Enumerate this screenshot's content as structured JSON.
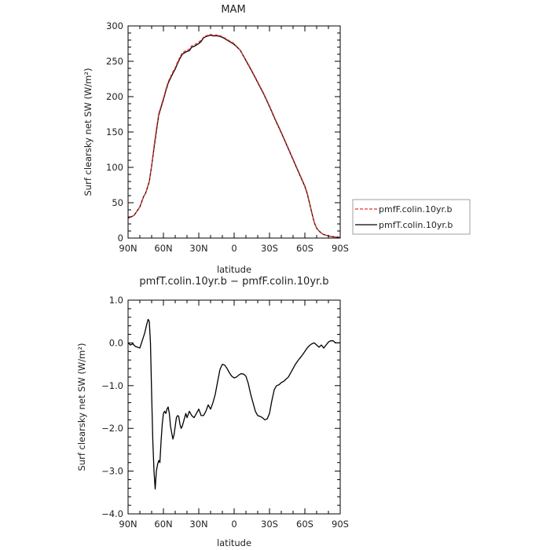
{
  "chart_data": [
    {
      "type": "line",
      "title": "MAM",
      "xlabel": "latitude",
      "ylabel": "Surf clearsky net SW (W/m²)",
      "x_tick_labels": [
        "90N",
        "60N",
        "30N",
        "0",
        "30S",
        "60S",
        "90S"
      ],
      "y_tick_labels": [
        "0",
        "50",
        "100",
        "150",
        "200",
        "250",
        "300"
      ],
      "xlim": [
        90,
        -90
      ],
      "ylim": [
        0,
        300
      ],
      "legend_position": "right",
      "series": [
        {
          "name": "pmfF.colin.10yr.b",
          "color": "#e8302a",
          "dash": true,
          "x": [
            90,
            85,
            80,
            77,
            75,
            72,
            70,
            68,
            66,
            64,
            62,
            60,
            58,
            56,
            54,
            52,
            50,
            48,
            46,
            44,
            42,
            40,
            38,
            36,
            34,
            32,
            30,
            28,
            26,
            24,
            22,
            20,
            18,
            16,
            14,
            12,
            10,
            8,
            6,
            4,
            2,
            0,
            -5,
            -10,
            -15,
            -20,
            -25,
            -30,
            -35,
            -40,
            -45,
            -50,
            -55,
            -60,
            -62,
            -64,
            -66,
            -68,
            -70,
            -72,
            -74,
            -76,
            -78,
            -80,
            -83,
            -86,
            -90
          ],
          "y": [
            28,
            32,
            44,
            58,
            64,
            80,
            102,
            130,
            154,
            176,
            187,
            198,
            210,
            221,
            228,
            235,
            241,
            249,
            256,
            262,
            264,
            266,
            267,
            272,
            273,
            275,
            277,
            280,
            284,
            286,
            287,
            288,
            287,
            287,
            287,
            286,
            285,
            283,
            281,
            279,
            277,
            275,
            266,
            252,
            237,
            221,
            205,
            187,
            168,
            150,
            131,
            112,
            93,
            74,
            64,
            50,
            36,
            22,
            14,
            10,
            7,
            5,
            4,
            3,
            2,
            1.5,
            1
          ]
        },
        {
          "name": "pmfT.colin.10yr.b",
          "color": "#000000",
          "dash": false,
          "x": [
            90,
            85,
            80,
            77,
            75,
            72,
            70,
            68,
            66,
            64,
            62,
            60,
            58,
            56,
            54,
            52,
            50,
            48,
            46,
            44,
            42,
            40,
            38,
            36,
            34,
            32,
            30,
            28,
            26,
            24,
            22,
            20,
            18,
            16,
            14,
            12,
            10,
            8,
            6,
            4,
            2,
            0,
            -5,
            -10,
            -15,
            -20,
            -25,
            -30,
            -35,
            -40,
            -45,
            -50,
            -55,
            -60,
            -62,
            -64,
            -66,
            -68,
            -70,
            -72,
            -74,
            -76,
            -78,
            -80,
            -83,
            -86,
            -90
          ],
          "y": [
            28,
            32,
            44,
            58,
            64,
            80,
            102,
            127,
            151,
            174,
            185,
            196,
            208,
            219,
            226,
            233,
            239,
            247,
            254,
            260,
            262,
            264,
            265,
            270,
            271,
            273,
            275,
            278,
            283,
            285,
            286,
            287,
            286,
            286,
            286,
            285,
            284,
            282,
            280,
            278,
            276,
            274,
            266,
            251,
            236,
            220,
            204,
            186,
            167,
            149,
            130,
            111,
            92,
            73,
            63,
            49,
            35,
            22,
            14,
            10,
            7,
            5,
            4,
            3,
            2,
            1.5,
            1
          ]
        }
      ]
    },
    {
      "type": "line",
      "title": "pmfT.colin.10yr.b − pmfF.colin.10yr.b",
      "xlabel": "latitude",
      "ylabel": "Surf clearsky net SW (W/m²)",
      "x_tick_labels": [
        "90N",
        "60N",
        "30N",
        "0",
        "30S",
        "60S",
        "90S"
      ],
      "y_tick_labels": [
        "1.0",
        "0.0",
        "−1.0",
        "−2.0",
        "−3.0",
        "−4.0"
      ],
      "xlim": [
        90,
        -90
      ],
      "ylim": [
        -4.0,
        1.0
      ],
      "series": [
        {
          "name": "",
          "color": "#000000",
          "x": [
            90,
            88,
            86,
            84,
            82,
            80,
            78,
            76,
            74,
            73,
            72,
            71,
            70,
            69,
            68,
            67,
            66,
            65,
            64,
            63,
            62,
            61,
            60,
            59,
            58,
            57,
            56,
            55,
            54,
            53,
            52,
            51,
            50,
            49,
            48,
            47,
            46,
            45,
            44,
            43,
            42,
            41,
            40,
            38,
            36,
            34,
            32,
            30,
            28,
            26,
            24,
            22,
            20,
            18,
            16,
            14,
            12,
            10,
            8,
            6,
            4,
            2,
            0,
            -2,
            -4,
            -6,
            -8,
            -10,
            -12,
            -14,
            -16,
            -18,
            -20,
            -22,
            -24,
            -26,
            -28,
            -30,
            -32,
            -34,
            -36,
            -38,
            -40,
            -42,
            -44,
            -46,
            -48,
            -50,
            -52,
            -54,
            -56,
            -58,
            -60,
            -62,
            -64,
            -66,
            -68,
            -70,
            -72,
            -74,
            -76,
            -78,
            -80,
            -82,
            -84,
            -86,
            -88,
            -90
          ],
          "y": [
            0.0,
            -0.05,
            -0.02,
            -0.08,
            -0.1,
            -0.12,
            0.05,
            0.22,
            0.45,
            0.55,
            0.5,
            0.0,
            -1.2,
            -2.3,
            -3.0,
            -3.42,
            -3.0,
            -2.85,
            -2.75,
            -2.8,
            -2.3,
            -1.9,
            -1.65,
            -1.6,
            -1.65,
            -1.55,
            -1.5,
            -1.65,
            -1.95,
            -2.1,
            -2.25,
            -2.15,
            -1.95,
            -1.75,
            -1.7,
            -1.72,
            -1.9,
            -2.0,
            -1.95,
            -1.85,
            -1.75,
            -1.65,
            -1.75,
            -1.6,
            -1.7,
            -1.75,
            -1.65,
            -1.55,
            -1.7,
            -1.7,
            -1.6,
            -1.45,
            -1.55,
            -1.4,
            -1.2,
            -0.9,
            -0.62,
            -0.5,
            -0.52,
            -0.6,
            -0.7,
            -0.78,
            -0.82,
            -0.8,
            -0.75,
            -0.72,
            -0.73,
            -0.78,
            -0.95,
            -1.2,
            -1.4,
            -1.6,
            -1.7,
            -1.72,
            -1.75,
            -1.8,
            -1.78,
            -1.65,
            -1.35,
            -1.1,
            -1.0,
            -0.98,
            -0.93,
            -0.9,
            -0.85,
            -0.8,
            -0.7,
            -0.6,
            -0.5,
            -0.42,
            -0.35,
            -0.28,
            -0.2,
            -0.12,
            -0.06,
            -0.02,
            0.0,
            -0.05,
            -0.1,
            -0.05,
            -0.12,
            -0.05,
            0.02,
            0.05,
            0.05,
            0.0,
            0.0,
            0.0
          ]
        }
      ]
    }
  ]
}
